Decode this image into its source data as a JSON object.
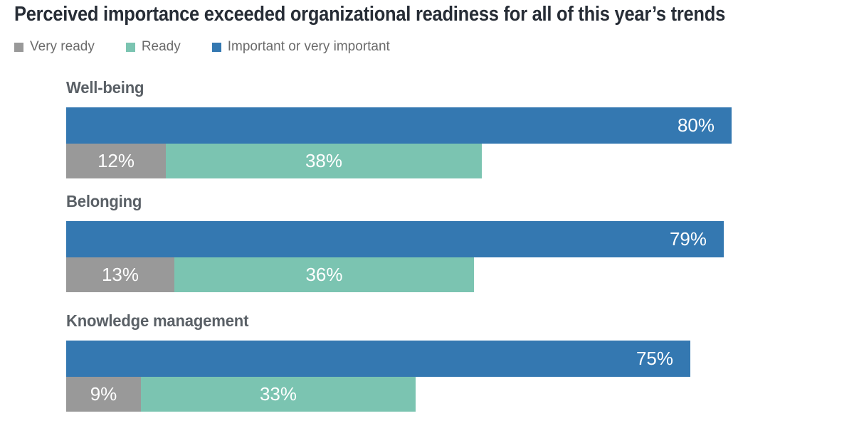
{
  "title": "Perceived importance exceeded organizational readiness for all of this year’s trends",
  "colors": {
    "very_ready": "#999999",
    "ready": "#7bc4b1",
    "important": "#3478b1",
    "title_text": "#272d36",
    "category_text": "#5a6066",
    "legend_text": "#6b6b6b",
    "value_text": "#ffffff",
    "background": "#ffffff"
  },
  "legend": [
    {
      "label": "Very ready",
      "color": "#999999"
    },
    {
      "label": "Ready",
      "color": "#7bc4b1"
    },
    {
      "label": "Important or very important",
      "color": "#3478b1"
    }
  ],
  "chart_data": {
    "type": "bar",
    "orientation": "horizontal",
    "title": "Perceived importance exceeded organizational readiness for all of this year’s trends",
    "categories": [
      "Well-being",
      "Belonging",
      "Knowledge management"
    ],
    "series": [
      {
        "name": "Important or very important",
        "color": "#3478b1",
        "values": [
          80,
          79,
          75
        ]
      },
      {
        "name": "Very ready",
        "color": "#999999",
        "values": [
          12,
          13,
          9
        ]
      },
      {
        "name": "Ready",
        "color": "#7bc4b1",
        "values": [
          38,
          36,
          33
        ]
      }
    ],
    "value_labels": {
      "important": [
        "80%",
        "79%",
        "75%"
      ],
      "very_ready": [
        "12%",
        "13%",
        "9%"
      ],
      "ready": [
        "38%",
        "36%",
        "33%"
      ]
    },
    "value_suffix": "%",
    "xlim": [
      0,
      100
    ],
    "grid": false,
    "legend_position": "top-left",
    "layout_note": "per category: importance bar on top row, very-ready + ready stacked segments on row below"
  }
}
